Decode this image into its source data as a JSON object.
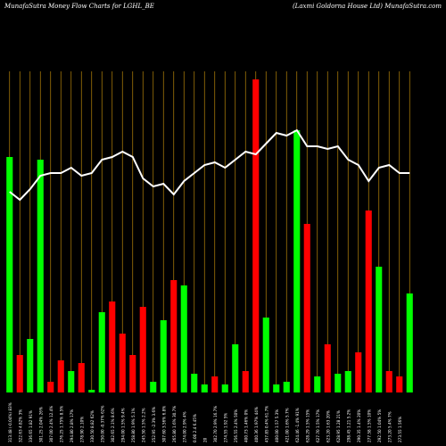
{
  "header": {
    "left": "MunafaSutra  Money Flow  Charts for LGHL_BE",
    "right": "(Laxmi   Goldorna  House   Ltd) MunafaSutra.com"
  },
  "colors": {
    "background": "#000000",
    "up": "#00ff00",
    "down": "#ff0000",
    "line": "#ffffff",
    "grid": "#b8860b"
  },
  "chart_data": {
    "type": "bar",
    "title": "MunafaSutra  Money Flow  Charts for LGHL_BE",
    "grid": true,
    "categories": [
      "410.45 0.02% 0.05%",
      "402.00 -2.06% 2%",
      "398.60 -0.85% 3%",
      "392.80 -1.46% 4%",
      "398.00 1.32% 1%",
      "402.60 1.16% 2%",
      "400.00 -0.65% 3%",
      "393.70 -1.57% 4%",
      "401.35 1.94% 1%",
      "403.85 0.62% 1%",
      "410.35 1.61% 2%",
      "404.60 -1.40% 3%",
      "398.10 -1.61% 4%",
      "391.00 -1.78% 2%",
      "394.80 0.97% 1%",
      "399.10 1.09% 1%",
      "402.10 0.75% 2%",
      "400.00 -0.52% 3%",
      "404.00 1.00% 1%",
      "406.50 0.62% 2%",
      "409.75 0.80% 3%",
      "415.00 1.28% 1%",
      "412.00 -0.72% 2%",
      "418.20 1.50% 1%",
      "420.00 0.43% 1%",
      "424.10 0.98% 1%",
      "418.00 -1.44% 2%",
      "416.85 -0.28% 3%",
      "412.00 -1.16% 4%",
      "405.50 -1.58% 2%",
      "398.00 -1.85% 1%",
      "403.80 1.46% 2%",
      "407.50 0.92% 1%",
      "401.00 -1.60% 2%",
      "399.40 -0.40% 3%",
      "402.90 0.88% 1%",
      "406.10 0.79% 2%",
      "411.75 1.39% 1%",
      "407.25 -1.09% 2%",
      "403.00 -1.04% 3%",
      "395.70 -1.81% 1%",
      "399.35 0.92% 2%",
      "403.10 0.94% 1%",
      "405.00 0.47% 2%",
      "402.20 -0.69% 3%",
      "400.05 -0.53% 1%",
      "408.90 2.21% 2%",
      "403.50 -1.32% 3%",
      "398.75 -1.18% 4%",
      "405.20 1.62% 1%",
      "403.00 -0.43% 2%",
      "406.80 0.94% 1%",
      "401.15 -1.39% 2%",
      "398.20 -0.74% 3%",
      "401.85 0.92% 1%",
      "405.40 0.88% 2%"
    ],
    "x_tick_labels": [
      "313.48 (-0.04%) 83%",
      "322.63 4.82% 3%",
      "336.65 1.82 91%",
      "301.25 2.04% 26%",
      "307.00 2.4% 12.4%",
      "276.25 1.75% 8.5%",
      "294.80 2.8% 17%",
      "278.90 2.10%",
      "330.50 8.82 62%",
      "250.00 -0.37% 62%",
      "302.65 2.1% 8.6%",
      "294.00 1.5% 9.4%",
      "258.80 1.9% 5.1%",
      "245.50 1.5% 2.2%",
      "252.95 -2.3% 3.6%",
      "307.60 3.56% 6.8%",
      "265.80 1.6% 30.7%",
      "274.00 2.9% 4%",
      "0.00 2.4 6.45%",
      "20",
      "302.70 2.9% 16.7%",
      "274.55 1.92 5%",
      "256.55 2.4% 50%",
      "400.73 1.46% 0%",
      "400.36 1.97% 44%",
      "457.85 0.4% 61.7%",
      "400.00 1.57 5.3%",
      "421.00 1.6% 5.7%",
      "624.46 -1.4% 91%",
      "628.29 1.5% 15%",
      "627.70 1.5% 17%",
      "623.20 1.63 20%",
      "628.95 1.28 21%",
      "298.45 1.21 5.2%",
      "290.35 1.4% 20%",
      "277.58 1.5% 10%",
      "292.50 1.04% 5%",
      "273.20 5.4% 7%",
      "273.55 1.56%"
    ],
    "series": [
      {
        "values": [
          0,
          88,
          0,
          0,
          0,
          14,
          0,
          0,
          0,
          10,
          0,
          0,
          0,
          0,
          30,
          0,
          0,
          49,
          0,
          0,
          0,
          0,
          0,
          0,
          0,
          0,
          0,
          0,
          0,
          0,
          0,
          0,
          0,
          0,
          0,
          0,
          0,
          0,
          0,
          0,
          0,
          0,
          0,
          0,
          0,
          0,
          0,
          0,
          0,
          0,
          0,
          0,
          0,
          0,
          0,
          0
        ]
      }
    ],
    "bars": [
      {
        "dir": "up",
        "value": 88
      },
      {
        "dir": "down",
        "value": 14
      },
      {
        "dir": "up",
        "value": 20
      },
      {
        "dir": "up",
        "value": 87
      },
      {
        "dir": "down",
        "value": 4
      },
      {
        "dir": "down",
        "value": 12
      },
      {
        "dir": "up",
        "value": 8
      },
      {
        "dir": "down",
        "value": 11
      },
      {
        "dir": "up",
        "value": 1
      },
      {
        "dir": "up",
        "value": 30
      },
      {
        "dir": "down",
        "value": 34
      },
      {
        "dir": "down",
        "value": 22
      },
      {
        "dir": "down",
        "value": 14
      },
      {
        "dir": "down",
        "value": 32
      },
      {
        "dir": "up",
        "value": 4
      },
      {
        "dir": "up",
        "value": 27
      },
      {
        "dir": "down",
        "value": 42
      },
      {
        "dir": "up",
        "value": 40
      },
      {
        "dir": "up",
        "value": 7
      },
      {
        "dir": "up",
        "value": 3
      },
      {
        "dir": "down",
        "value": 6
      },
      {
        "dir": "up",
        "value": 3
      },
      {
        "dir": "up",
        "value": 18
      },
      {
        "dir": "down",
        "value": 8
      },
      {
        "dir": "down",
        "value": 117
      },
      {
        "dir": "up",
        "value": 28
      },
      {
        "dir": "up",
        "value": 3
      },
      {
        "dir": "up",
        "value": 4
      },
      {
        "dir": "up",
        "value": 98
      },
      {
        "dir": "down",
        "value": 63
      },
      {
        "dir": "up",
        "value": 6
      },
      {
        "dir": "down",
        "value": 18
      },
      {
        "dir": "up",
        "value": 7
      },
      {
        "dir": "up",
        "value": 8
      },
      {
        "dir": "down",
        "value": 15
      },
      {
        "dir": "down",
        "value": 68
      },
      {
        "dir": "up",
        "value": 47
      },
      {
        "dir": "down",
        "value": 8
      },
      {
        "dir": "down",
        "value": 6
      },
      {
        "dir": "up",
        "value": 37
      }
    ],
    "line_values": [
      75,
      72,
      76,
      81,
      82,
      82,
      84,
      81,
      82,
      87,
      88,
      90,
      88,
      80,
      77,
      78,
      74,
      79,
      82,
      85,
      86,
      84,
      87,
      90,
      89,
      93,
      97,
      96,
      98,
      92,
      92,
      91,
      92,
      87,
      85,
      79,
      84,
      85,
      82,
      82
    ],
    "ylim": [
      0,
      120
    ],
    "line_ylim": [
      0,
      120
    ]
  }
}
